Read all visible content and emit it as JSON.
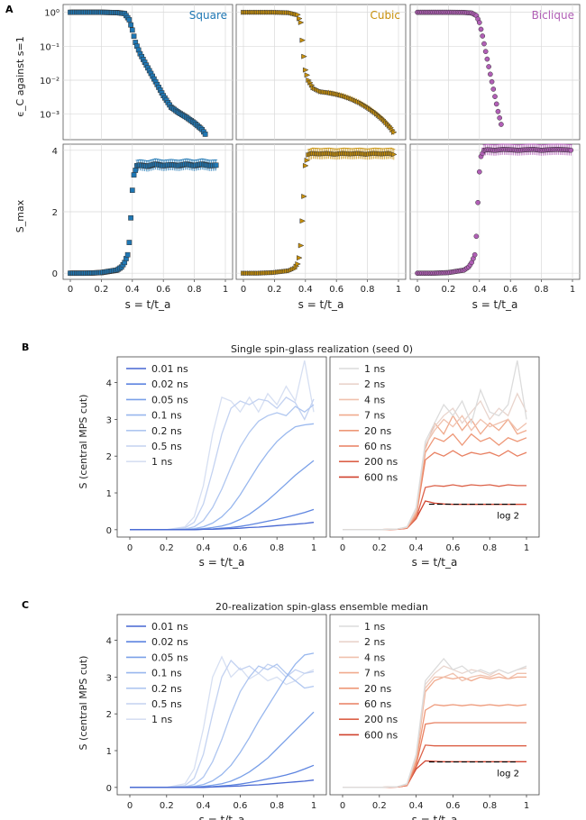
{
  "panel_letters": [
    "A",
    "B",
    "C"
  ],
  "panel_a": {
    "ylabel_top": "ϵ_C against s=1",
    "ylabel_bottom": "S_max",
    "xlabel": "s = t/t_a",
    "x_ticks": [
      "0",
      "0.2",
      "0.4",
      "0.6",
      "0.8",
      "1"
    ],
    "y_ticks_top": [
      "10⁰",
      "10⁻¹",
      "10⁻²",
      "10⁻³"
    ],
    "y_ticks_bottom": [
      "0",
      "2",
      "4"
    ],
    "topologies": [
      {
        "name": "Square",
        "color": "#1f77b4",
        "marker": "square"
      },
      {
        "name": "Cubic",
        "color": "#c8900a",
        "marker": "triangle"
      },
      {
        "name": "Biclique",
        "color": "#b15fb6",
        "marker": "circle"
      }
    ]
  },
  "panel_b": {
    "title": "Single spin-glass realization (seed 0)",
    "ylabel": "S (central MPS cut)",
    "xlabel": "s = t/t_a",
    "left_legend": [
      "0.01 ns",
      "0.02 ns",
      "0.05 ns",
      "0.1 ns",
      "0.2 ns",
      "0.5 ns",
      "1 ns"
    ],
    "right_legend": [
      "1 ns",
      "2 ns",
      "4 ns",
      "7 ns",
      "20 ns",
      "60 ns",
      "200 ns",
      "600 ns"
    ],
    "annotation": "log 2"
  },
  "panel_c": {
    "title": "20-realization spin-glass ensemble median",
    "ylabel": "S (central MPS cut)",
    "xlabel": "s = t/t_a",
    "left_legend": [
      "0.01 ns",
      "0.02 ns",
      "0.05 ns",
      "0.1 ns",
      "0.2 ns",
      "0.5 ns",
      "1 ns"
    ],
    "right_legend": [
      "1 ns",
      "2 ns",
      "4 ns",
      "7 ns",
      "20 ns",
      "60 ns",
      "200 ns",
      "600 ns"
    ],
    "annotation": "log 2"
  },
  "chart_data": [
    {
      "type": "scatter",
      "title": "Square",
      "xlabel": "s = t/t_a",
      "ylabel": "ϵ_C against s=1",
      "yscale": "log",
      "xlim": [
        0,
        1
      ],
      "ylim": [
        0.0002,
        1.5
      ],
      "x": [
        0.0,
        0.1,
        0.2,
        0.3,
        0.35,
        0.38,
        0.4,
        0.42,
        0.45,
        0.5,
        0.55,
        0.6,
        0.65,
        0.7,
        0.75,
        0.8,
        0.85,
        0.88
      ],
      "y": [
        1.0,
        1.0,
        1.0,
        0.98,
        0.92,
        0.6,
        0.3,
        0.13,
        0.06,
        0.023,
        0.009,
        0.0035,
        0.0016,
        0.0011,
        0.0008,
        0.00055,
        0.00035,
        0.00022
      ]
    },
    {
      "type": "scatter",
      "title": "Cubic",
      "xlabel": "s = t/t_a",
      "ylabel": "ϵ_C against s=1",
      "yscale": "log",
      "xlim": [
        0,
        1
      ],
      "ylim": [
        0.0002,
        1.5
      ],
      "x": [
        0.0,
        0.1,
        0.2,
        0.3,
        0.35,
        0.37,
        0.38,
        0.39,
        0.4,
        0.42,
        0.45,
        0.5,
        0.55,
        0.6,
        0.65,
        0.7,
        0.75,
        0.8,
        0.85,
        0.9,
        0.95,
        0.98
      ],
      "y": [
        1.0,
        1.0,
        1.0,
        0.97,
        0.85,
        0.5,
        0.15,
        0.05,
        0.02,
        0.01,
        0.006,
        0.0046,
        0.0043,
        0.0039,
        0.0034,
        0.0028,
        0.0022,
        0.0016,
        0.0011,
        0.0007,
        0.0004,
        0.00025
      ]
    },
    {
      "type": "scatter",
      "title": "Biclique",
      "xlabel": "s = t/t_a",
      "ylabel": "ϵ_C against s=1",
      "yscale": "log",
      "xlim": [
        0,
        1
      ],
      "ylim": [
        0.0002,
        1.5
      ],
      "x": [
        0.0,
        0.1,
        0.2,
        0.3,
        0.35,
        0.38,
        0.4,
        0.42,
        0.44,
        0.46,
        0.48,
        0.5,
        0.52,
        0.54,
        0.55
      ],
      "y": [
        1.0,
        1.0,
        1.0,
        0.99,
        0.95,
        0.8,
        0.5,
        0.2,
        0.07,
        0.025,
        0.009,
        0.0033,
        0.0012,
        0.0005,
        0.00025
      ]
    },
    {
      "type": "scatter",
      "title": "Square",
      "xlabel": "s = t/t_a",
      "ylabel": "S_max",
      "xlim": [
        0,
        1
      ],
      "ylim": [
        -0.2,
        4.2
      ],
      "x": [
        0.0,
        0.1,
        0.2,
        0.3,
        0.33,
        0.35,
        0.37,
        0.38,
        0.39,
        0.4,
        0.41,
        0.43,
        0.45,
        0.5,
        0.55,
        0.6,
        0.65,
        0.7,
        0.75,
        0.8,
        0.85,
        0.9,
        0.95
      ],
      "y": [
        0.0,
        0.0,
        0.02,
        0.1,
        0.2,
        0.35,
        0.6,
        1.0,
        1.8,
        2.7,
        3.2,
        3.5,
        3.52,
        3.48,
        3.55,
        3.5,
        3.53,
        3.5,
        3.55,
        3.5,
        3.55,
        3.5,
        3.52
      ]
    },
    {
      "type": "scatter",
      "title": "Cubic",
      "xlabel": "s = t/t_a",
      "ylabel": "S_max",
      "xlim": [
        0,
        1
      ],
      "ylim": [
        -0.2,
        4.2
      ],
      "x": [
        0.0,
        0.1,
        0.2,
        0.3,
        0.33,
        0.35,
        0.36,
        0.37,
        0.38,
        0.39,
        0.4,
        0.42,
        0.45,
        0.5,
        0.55,
        0.6,
        0.65,
        0.7,
        0.75,
        0.8,
        0.85,
        0.9,
        0.95,
        0.98
      ],
      "y": [
        0.0,
        0.0,
        0.02,
        0.08,
        0.15,
        0.3,
        0.5,
        0.9,
        1.7,
        2.5,
        3.5,
        3.85,
        3.9,
        3.88,
        3.9,
        3.87,
        3.9,
        3.88,
        3.9,
        3.87,
        3.9,
        3.88,
        3.9,
        3.85
      ]
    },
    {
      "type": "scatter",
      "title": "Biclique",
      "xlabel": "s = t/t_a",
      "ylabel": "S_max",
      "xlim": [
        0,
        1
      ],
      "ylim": [
        -0.2,
        4.2
      ],
      "x": [
        0.0,
        0.1,
        0.2,
        0.3,
        0.33,
        0.35,
        0.37,
        0.38,
        0.39,
        0.4,
        0.41,
        0.43,
        0.45,
        0.5,
        0.55,
        0.6,
        0.65,
        0.7,
        0.75,
        0.8,
        0.85,
        0.9,
        0.95,
        1.0
      ],
      "y": [
        0.0,
        0.0,
        0.02,
        0.1,
        0.2,
        0.35,
        0.6,
        1.2,
        2.3,
        3.3,
        3.8,
        4.0,
        4.02,
        4.0,
        4.03,
        4.02,
        4.0,
        4.02,
        4.03,
        4.0,
        4.02,
        4.03,
        4.02,
        4.0
      ]
    },
    {
      "type": "line",
      "title": "Single spin-glass realization (seed 0)",
      "xlabel": "s = t/t_a",
      "ylabel": "S (central MPS cut)",
      "xlim": [
        0,
        1
      ],
      "ylim": [
        -0.2,
        4.7
      ],
      "x": [
        0.0,
        0.1,
        0.2,
        0.3,
        0.35,
        0.4,
        0.45,
        0.5,
        0.55,
        0.6,
        0.65,
        0.7,
        0.75,
        0.8,
        0.85,
        0.9,
        0.95,
        1.0
      ],
      "series": [
        {
          "name": "0.01 ns",
          "values": [
            0,
            0,
            0,
            0,
            0,
            0.01,
            0.01,
            0.02,
            0.03,
            0.04,
            0.06,
            0.07,
            0.09,
            0.11,
            0.13,
            0.15,
            0.17,
            0.2
          ]
        },
        {
          "name": "0.02 ns",
          "values": [
            0,
            0,
            0,
            0,
            0,
            0.01,
            0.02,
            0.04,
            0.06,
            0.09,
            0.13,
            0.18,
            0.23,
            0.28,
            0.34,
            0.4,
            0.47,
            0.55
          ]
        },
        {
          "name": "0.05 ns",
          "values": [
            0,
            0,
            0,
            0,
            0.01,
            0.03,
            0.06,
            0.1,
            0.17,
            0.28,
            0.42,
            0.6,
            0.8,
            1.02,
            1.25,
            1.48,
            1.68,
            1.88
          ]
        },
        {
          "name": "0.1 ns",
          "values": [
            0,
            0,
            0,
            0.01,
            0.03,
            0.08,
            0.18,
            0.35,
            0.6,
            0.95,
            1.35,
            1.75,
            2.1,
            2.4,
            2.62,
            2.8,
            2.85,
            2.88
          ]
        },
        {
          "name": "0.2 ns",
          "values": [
            0,
            0,
            0,
            0.02,
            0.08,
            0.25,
            0.6,
            1.1,
            1.7,
            2.25,
            2.65,
            2.95,
            3.1,
            3.18,
            3.1,
            3.35,
            3.2,
            3.4
          ]
        },
        {
          "name": "0.5 ns",
          "values": [
            0,
            0,
            0,
            0.05,
            0.2,
            0.7,
            1.6,
            2.6,
            3.3,
            3.5,
            3.4,
            3.55,
            3.5,
            3.3,
            3.6,
            3.45,
            3.0,
            3.55
          ]
        },
        {
          "name": "1 ns",
          "values": [
            0,
            0,
            0,
            0.08,
            0.35,
            1.2,
            2.6,
            3.6,
            3.5,
            3.2,
            3.6,
            3.2,
            3.7,
            3.4,
            3.9,
            3.5,
            4.6,
            3.2
          ]
        },
        {
          "name": "1 ns",
          "values": [
            0,
            0,
            0,
            0.02,
            0.08,
            0.6,
            2.4,
            2.9,
            3.4,
            3.1,
            3.5,
            2.9,
            3.8,
            3.2,
            3.1,
            3.4,
            4.6,
            3.0
          ]
        },
        {
          "name": "2 ns",
          "values": [
            0,
            0,
            0,
            0.02,
            0.07,
            0.55,
            2.3,
            2.8,
            3.1,
            3.3,
            2.9,
            3.2,
            3.5,
            3.0,
            3.3,
            3.1,
            3.7,
            3.2
          ]
        },
        {
          "name": "4 ns",
          "values": [
            0,
            0,
            0,
            0.02,
            0.06,
            0.5,
            2.3,
            2.7,
            3.0,
            2.8,
            3.1,
            2.7,
            3.0,
            2.8,
            2.9,
            3.0,
            2.7,
            2.9
          ]
        },
        {
          "name": "7 ns",
          "values": [
            0,
            0,
            0,
            0.02,
            0.06,
            0.45,
            2.2,
            2.9,
            2.6,
            3.1,
            2.7,
            3.0,
            2.6,
            2.9,
            2.7,
            3.0,
            2.6,
            2.7
          ]
        },
        {
          "name": "20 ns",
          "values": [
            0,
            0,
            0,
            0.02,
            0.05,
            0.4,
            2.1,
            2.5,
            2.4,
            2.6,
            2.3,
            2.6,
            2.4,
            2.5,
            2.3,
            2.5,
            2.4,
            2.5
          ]
        },
        {
          "name": "60 ns",
          "values": [
            0,
            0,
            0,
            0.01,
            0.05,
            0.35,
            1.9,
            2.1,
            2.0,
            2.15,
            2.0,
            2.1,
            2.05,
            2.1,
            2.0,
            2.15,
            2.0,
            2.1
          ]
        },
        {
          "name": "200 ns",
          "values": [
            0,
            0,
            0,
            0.01,
            0.04,
            0.3,
            1.15,
            1.2,
            1.18,
            1.22,
            1.18,
            1.22,
            1.2,
            1.22,
            1.18,
            1.22,
            1.2,
            1.2
          ]
        },
        {
          "name": "600 ns",
          "values": [
            0,
            0,
            0,
            0.01,
            0.04,
            0.3,
            0.78,
            0.72,
            0.7,
            0.69,
            0.69,
            0.69,
            0.69,
            0.69,
            0.69,
            0.69,
            0.69,
            0.69
          ]
        }
      ],
      "reference_line": {
        "label": "log 2",
        "y": 0.693,
        "x_range": [
          0.47,
          0.95
        ]
      }
    },
    {
      "type": "line",
      "title": "20-realization spin-glass ensemble median",
      "xlabel": "s = t/t_a",
      "ylabel": "S (central MPS cut)",
      "xlim": [
        0,
        1
      ],
      "ylim": [
        -0.2,
        4.7
      ],
      "x": [
        0.0,
        0.1,
        0.2,
        0.3,
        0.35,
        0.4,
        0.45,
        0.5,
        0.55,
        0.6,
        0.65,
        0.7,
        0.75,
        0.8,
        0.85,
        0.9,
        0.95,
        1.0
      ],
      "series": [
        {
          "name": "0.01 ns",
          "values": [
            0,
            0,
            0,
            0,
            0,
            0,
            0.01,
            0.02,
            0.03,
            0.04,
            0.06,
            0.07,
            0.09,
            0.11,
            0.13,
            0.15,
            0.17,
            0.2
          ]
        },
        {
          "name": "0.02 ns",
          "values": [
            0,
            0,
            0,
            0,
            0,
            0.01,
            0.02,
            0.04,
            0.06,
            0.09,
            0.13,
            0.18,
            0.23,
            0.28,
            0.34,
            0.41,
            0.5,
            0.6
          ]
        },
        {
          "name": "0.05 ns",
          "values": [
            0,
            0,
            0,
            0,
            0.01,
            0.03,
            0.06,
            0.1,
            0.17,
            0.28,
            0.42,
            0.6,
            0.8,
            1.05,
            1.3,
            1.55,
            1.8,
            2.05
          ]
        },
        {
          "name": "0.1 ns",
          "values": [
            0,
            0,
            0,
            0.01,
            0.03,
            0.08,
            0.18,
            0.35,
            0.6,
            0.95,
            1.35,
            1.8,
            2.2,
            2.6,
            3.0,
            3.35,
            3.6,
            3.65
          ]
        },
        {
          "name": "0.2 ns",
          "values": [
            0,
            0,
            0,
            0.02,
            0.08,
            0.28,
            0.7,
            1.3,
            2.0,
            2.6,
            3.0,
            3.3,
            3.2,
            3.35,
            3.1,
            2.9,
            2.7,
            2.75
          ]
        },
        {
          "name": "0.5 ns",
          "values": [
            0,
            0,
            0,
            0.05,
            0.25,
            0.9,
            2.0,
            3.0,
            3.45,
            3.2,
            3.3,
            3.1,
            3.35,
            3.25,
            3.0,
            3.2,
            3.1,
            3.15
          ]
        },
        {
          "name": "1 ns",
          "values": [
            0,
            0,
            0,
            0.1,
            0.5,
            1.6,
            3.0,
            3.55,
            3.0,
            3.25,
            2.95,
            3.1,
            2.9,
            3.0,
            2.8,
            2.9,
            3.1,
            3.2
          ]
        },
        {
          "name": "1 ns",
          "values": [
            0,
            0,
            0,
            0.02,
            0.1,
            0.9,
            2.9,
            3.2,
            3.5,
            3.2,
            3.3,
            3.1,
            3.2,
            3.1,
            3.2,
            3.1,
            3.2,
            3.3
          ]
        },
        {
          "name": "2 ns",
          "values": [
            0,
            0,
            0,
            0.02,
            0.09,
            0.85,
            2.8,
            3.1,
            3.3,
            3.2,
            3.1,
            3.2,
            3.15,
            3.05,
            3.2,
            3.1,
            3.2,
            3.25
          ]
        },
        {
          "name": "4 ns",
          "values": [
            0,
            0,
            0,
            0.02,
            0.08,
            0.8,
            2.7,
            3.0,
            3.0,
            3.1,
            2.9,
            3.0,
            3.05,
            3.0,
            3.1,
            2.95,
            3.1,
            3.1
          ]
        },
        {
          "name": "7 ns",
          "values": [
            0,
            0,
            0,
            0.02,
            0.08,
            0.75,
            2.6,
            2.9,
            3.0,
            2.95,
            3.0,
            2.9,
            3.0,
            2.95,
            3.0,
            2.95,
            3.0,
            3.0
          ]
        },
        {
          "name": "20 ns",
          "values": [
            0,
            0,
            0,
            0.02,
            0.07,
            0.7,
            2.1,
            2.25,
            2.22,
            2.25,
            2.22,
            2.25,
            2.22,
            2.25,
            2.22,
            2.25,
            2.22,
            2.25
          ]
        },
        {
          "name": "60 ns",
          "values": [
            0,
            0,
            0,
            0.01,
            0.06,
            0.6,
            1.72,
            1.76,
            1.76,
            1.76,
            1.76,
            1.76,
            1.76,
            1.76,
            1.76,
            1.76,
            1.76,
            1.76
          ]
        },
        {
          "name": "200 ns",
          "values": [
            0,
            0,
            0,
            0.01,
            0.05,
            0.55,
            1.15,
            1.13,
            1.13,
            1.13,
            1.13,
            1.13,
            1.13,
            1.13,
            1.13,
            1.13,
            1.13,
            1.13
          ]
        },
        {
          "name": "600 ns",
          "values": [
            0,
            0,
            0,
            0.01,
            0.05,
            0.5,
            0.72,
            0.71,
            0.7,
            0.7,
            0.7,
            0.7,
            0.7,
            0.7,
            0.7,
            0.7,
            0.7,
            0.7
          ]
        }
      ],
      "reference_line": {
        "label": "log 2",
        "y": 0.693,
        "x_range": [
          0.47,
          0.95
        ]
      }
    }
  ]
}
